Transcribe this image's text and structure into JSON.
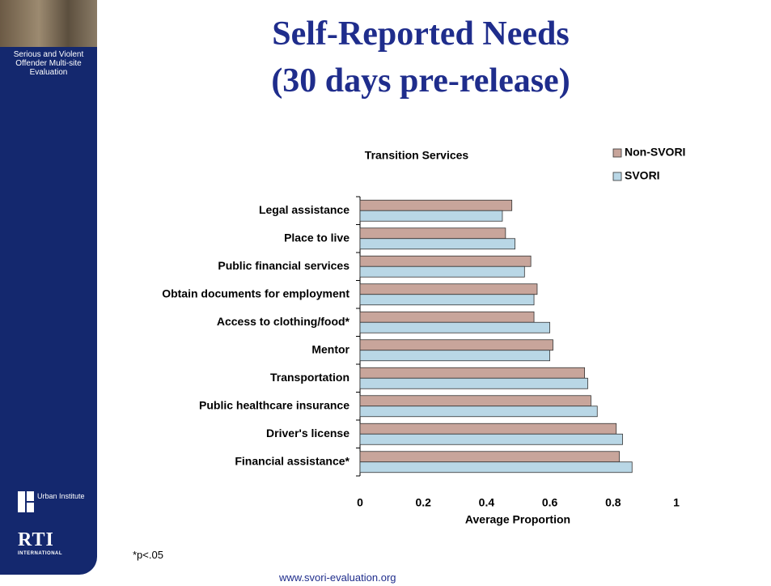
{
  "slide": {
    "title_lines": [
      "Self-Reported Needs",
      "(30 days pre-release)"
    ],
    "sidebar_text": "Serious and Violent Offender Multi-site Evaluation",
    "urban_logo": "Urban Institute",
    "rti_logo": "RTI",
    "rti_sub": "INTERNATIONAL",
    "footnote": "*p<.05",
    "footer": "www.svori-evaluation.org"
  },
  "chart_data": {
    "type": "bar",
    "orientation": "horizontal",
    "title": "Transition Services",
    "xlabel": "Average Proportion",
    "categories": [
      "Legal assistance",
      "Place to live",
      "Public financial services",
      "Obtain documents for employment",
      "Access to clothing/food*",
      "Mentor",
      "Transportation",
      "Public healthcare insurance",
      "Driver's license",
      "Financial assistance*"
    ],
    "series": [
      {
        "name": "Non-SVORI",
        "color": "#c8a59b",
        "values": [
          0.48,
          0.46,
          0.54,
          0.56,
          0.55,
          0.61,
          0.71,
          0.73,
          0.81,
          0.82
        ]
      },
      {
        "name": "SVORI",
        "color": "#b9d7e6",
        "values": [
          0.45,
          0.49,
          0.52,
          0.55,
          0.6,
          0.6,
          0.72,
          0.75,
          0.83,
          0.86
        ]
      }
    ],
    "xlim": [
      0,
      1
    ],
    "xticks": [
      0,
      0.2,
      0.4,
      0.6,
      0.8,
      1
    ],
    "grid": false,
    "legend": "top-right"
  }
}
